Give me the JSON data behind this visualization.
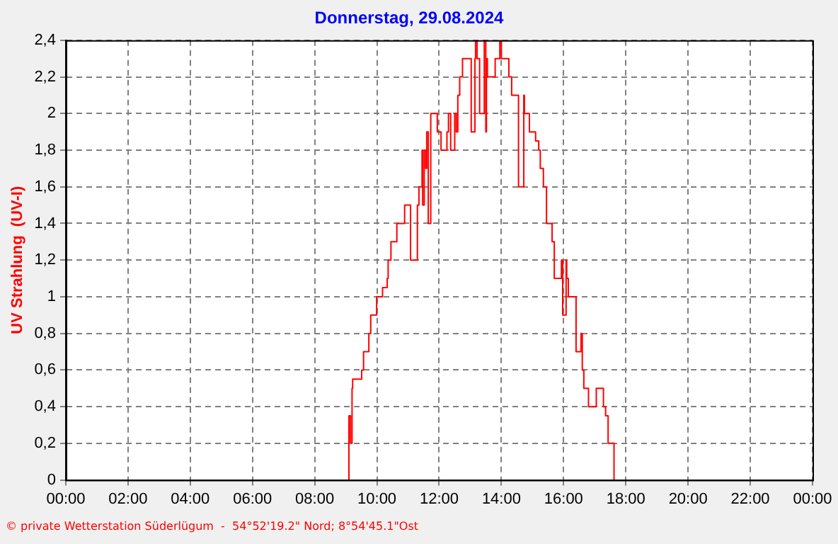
{
  "chart_data": {
    "type": "step",
    "title": "Donnerstag, 29.08.2024",
    "ylabel": "UV Strahlung  (UV-I)",
    "annotations": [
      "© private Wetterstation Süderlügum  -  54°52'19.2\" Nord; 8°54'45.1\"Ost"
    ],
    "xlim": [
      0,
      24
    ],
    "xticks": [
      {
        "value": 0,
        "label": "00:00"
      },
      {
        "value": 2,
        "label": "02:00"
      },
      {
        "value": 4,
        "label": "04:00"
      },
      {
        "value": 6,
        "label": "06:00"
      },
      {
        "value": 8,
        "label": "08:00"
      },
      {
        "value": 10,
        "label": "10:00"
      },
      {
        "value": 12,
        "label": "12:00"
      },
      {
        "value": 14,
        "label": "14:00"
      },
      {
        "value": 16,
        "label": "16:00"
      },
      {
        "value": 18,
        "label": "18:00"
      },
      {
        "value": 20,
        "label": "20:00"
      },
      {
        "value": 22,
        "label": "22:00"
      },
      {
        "value": 24,
        "label": "00:00"
      }
    ],
    "ylim": [
      0,
      2.4
    ],
    "yticks": [
      0,
      {
        "value": 0.2,
        "label": "0,2"
      },
      {
        "value": 0.4,
        "label": "0,4"
      },
      {
        "value": 0.6,
        "label": "0,6"
      },
      {
        "value": 0.8,
        "label": "0,8"
      },
      1,
      {
        "value": 1.2,
        "label": "1,2"
      },
      {
        "value": 1.4,
        "label": "1,4"
      },
      {
        "value": 1.6,
        "label": "1,6"
      },
      {
        "value": 1.8,
        "label": "1,8"
      },
      2,
      {
        "value": 2.2,
        "label": "2,2"
      },
      {
        "value": 2.4,
        "label": "2,4"
      }
    ],
    "grid": true,
    "line_style": "solid",
    "marker": "none",
    "legend": false,
    "series": [
      {
        "color": "#ff0000",
        "x": [
          9.1,
          9.15,
          9.2,
          9.22,
          9.51,
          9.57,
          9.74,
          9.8,
          9.99,
          10.18,
          10.33,
          10.36,
          10.45,
          10.64,
          10.89,
          11.08,
          11.3,
          11.35,
          11.45,
          11.47,
          11.52,
          11.57,
          11.6,
          11.65,
          11.73,
          11.75,
          11.94,
          12.06,
          12.25,
          12.3,
          12.37,
          12.5,
          12.55,
          12.6,
          12.66,
          12.75,
          12.94,
          13.03,
          13.15,
          13.17,
          13.22,
          13.3,
          13.45,
          13.5,
          13.52,
          13.55,
          13.8,
          13.85,
          13.95,
          14.0,
          14.24,
          14.33,
          14.55,
          14.72,
          14.74,
          14.9,
          15.1,
          15.2,
          15.25,
          15.35,
          15.45,
          15.63,
          15.7,
          15.93,
          15.97,
          16.08,
          16.1,
          16.15,
          16.4,
          16.56,
          16.6,
          16.65,
          16.8,
          17.05,
          17.28,
          17.35,
          17.43,
          17.62,
          17.65
        ],
        "values": [
          0,
          0.35,
          0.2,
          0.5,
          0.55,
          0.6,
          0.7,
          0.8,
          0.9,
          1.0,
          1.05,
          1.1,
          1.2,
          1.3,
          1.4,
          1.5,
          1.2,
          1.5,
          1.6,
          1.8,
          1.5,
          1.8,
          1.7,
          1.9,
          1.4,
          2.0,
          2.0,
          1.9,
          1.8,
          1.9,
          2.0,
          1.8,
          2.0,
          1.9,
          2.1,
          2.2,
          2.3,
          2.3,
          1.9,
          2.3,
          2.4,
          2.3,
          2.0,
          2.4,
          1.9,
          2.3,
          2.2,
          2.3,
          2.3,
          2.4,
          2.3,
          2.2,
          2.1,
          1.6,
          2.1,
          2.0,
          1.9,
          1.85,
          1.8,
          1.7,
          1.6,
          1.4,
          1.3,
          1.1,
          1.2,
          0.9,
          1.2,
          1.1,
          1.0,
          0.7,
          0.8,
          0.6,
          0.5,
          0.4,
          0.5,
          0.4,
          0.35,
          0.2,
          0
        ]
      }
    ]
  }
}
